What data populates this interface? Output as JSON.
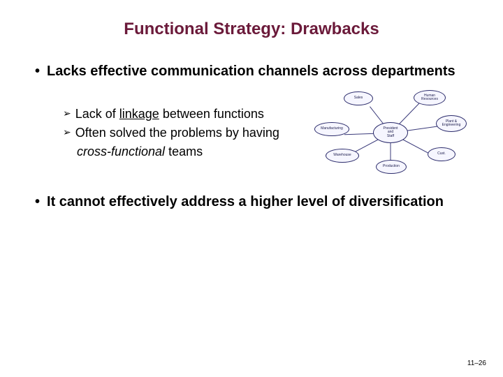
{
  "title": "Functional Strategy: Drawbacks",
  "bullet1": {
    "text": "Lacks effective communication channels across departments",
    "sub1_prefix": "Lack of ",
    "sub1_underlined": "linkage",
    "sub1_suffix": " between functions",
    "sub2": "Often solved the problems by having",
    "sub2_cont_italic": "cross-functional",
    "sub2_cont_rest": " teams"
  },
  "bullet2": {
    "text": "It cannot effectively address a higher level of diversification"
  },
  "diagram": {
    "center": "President\nand\nStaff",
    "nodes": {
      "sales": "Sales",
      "hr": "Human\nResources",
      "manuf": "Manufacturing",
      "plant": "Plant &\nEngineering",
      "ware": "Warehouse",
      "prod": "Production",
      "cust": "Cust."
    },
    "node_fill": "#f6f6ff",
    "node_border": "#2a2a6a",
    "edge_color": "#3a3a7a"
  },
  "colors": {
    "title": "#6b1a3a",
    "text": "#000000",
    "background": "#ffffff"
  },
  "page_number": "11–26"
}
